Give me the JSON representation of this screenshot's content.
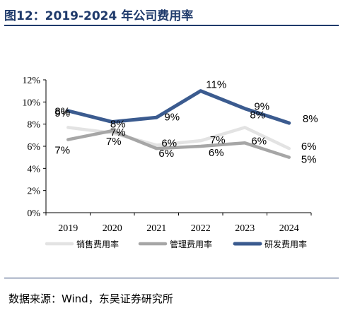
{
  "header": {
    "title": "图12：2019-2024 年公司费用率"
  },
  "footer": {
    "source": "数据来源：Wind，东吴证券研究所"
  },
  "chart_data": {
    "type": "line",
    "title": "",
    "xlabel": "",
    "ylabel": "",
    "categories": [
      "2019",
      "2020",
      "2021",
      "2022",
      "2023",
      "2024"
    ],
    "ylim": [
      0,
      12
    ],
    "y_ticks": [
      "0%",
      "2%",
      "4%",
      "6%",
      "8%",
      "10%",
      "12%"
    ],
    "legend_position": "bottom",
    "grid": false,
    "series": [
      {
        "name": "销售费用率",
        "color": "#e3e3e3",
        "values": [
          7.7,
          7.2,
          6.1,
          6.5,
          7.7,
          5.8
        ],
        "labels": [
          "8%",
          "7%",
          "6%",
          "7%",
          "8%",
          "6%"
        ]
      },
      {
        "name": "管理费用率",
        "color": "#a6a6a6",
        "values": [
          6.6,
          7.4,
          5.8,
          6.0,
          6.3,
          5.0
        ],
        "labels": [
          "7%",
          "7%",
          "6%",
          "6%",
          "6%",
          "5%"
        ]
      },
      {
        "name": "研发费用率",
        "color": "#3b5b8f",
        "values": [
          9.2,
          8.2,
          8.6,
          11.0,
          9.4,
          8.1
        ],
        "labels": [
          "9%",
          "8%",
          "9%",
          "11%",
          "9%",
          "8%"
        ]
      }
    ]
  }
}
